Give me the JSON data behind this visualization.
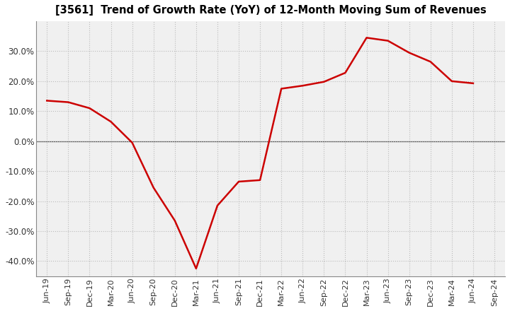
{
  "title": "[3561]  Trend of Growth Rate (YoY) of 12-Month Moving Sum of Revenues",
  "line_color": "#cc0000",
  "line_width": 1.8,
  "background_color": "#ffffff",
  "plot_bg_color": "#f0f0f0",
  "grid_color": "#bbbbbb",
  "ylim": [
    -0.45,
    0.4
  ],
  "yticks": [
    -0.4,
    -0.3,
    -0.2,
    -0.1,
    0.0,
    0.1,
    0.2,
    0.3
  ],
  "values": [
    0.135,
    0.13,
    0.11,
    0.065,
    -0.005,
    -0.155,
    -0.265,
    -0.425,
    -0.215,
    -0.135,
    -0.13,
    0.175,
    0.185,
    0.198,
    0.228,
    0.345,
    0.335,
    0.295,
    0.265,
    0.2,
    0.193,
    null
  ],
  "xtick_labels": [
    "Jun-19",
    "Sep-19",
    "Dec-19",
    "Mar-20",
    "Jun-20",
    "Sep-20",
    "Dec-20",
    "Mar-21",
    "Jun-21",
    "Sep-21",
    "Dec-21",
    "Mar-22",
    "Jun-22",
    "Sep-22",
    "Dec-22",
    "Mar-23",
    "Jun-23",
    "Sep-23",
    "Dec-23",
    "Mar-24",
    "Jun-24",
    "Sep-24"
  ]
}
